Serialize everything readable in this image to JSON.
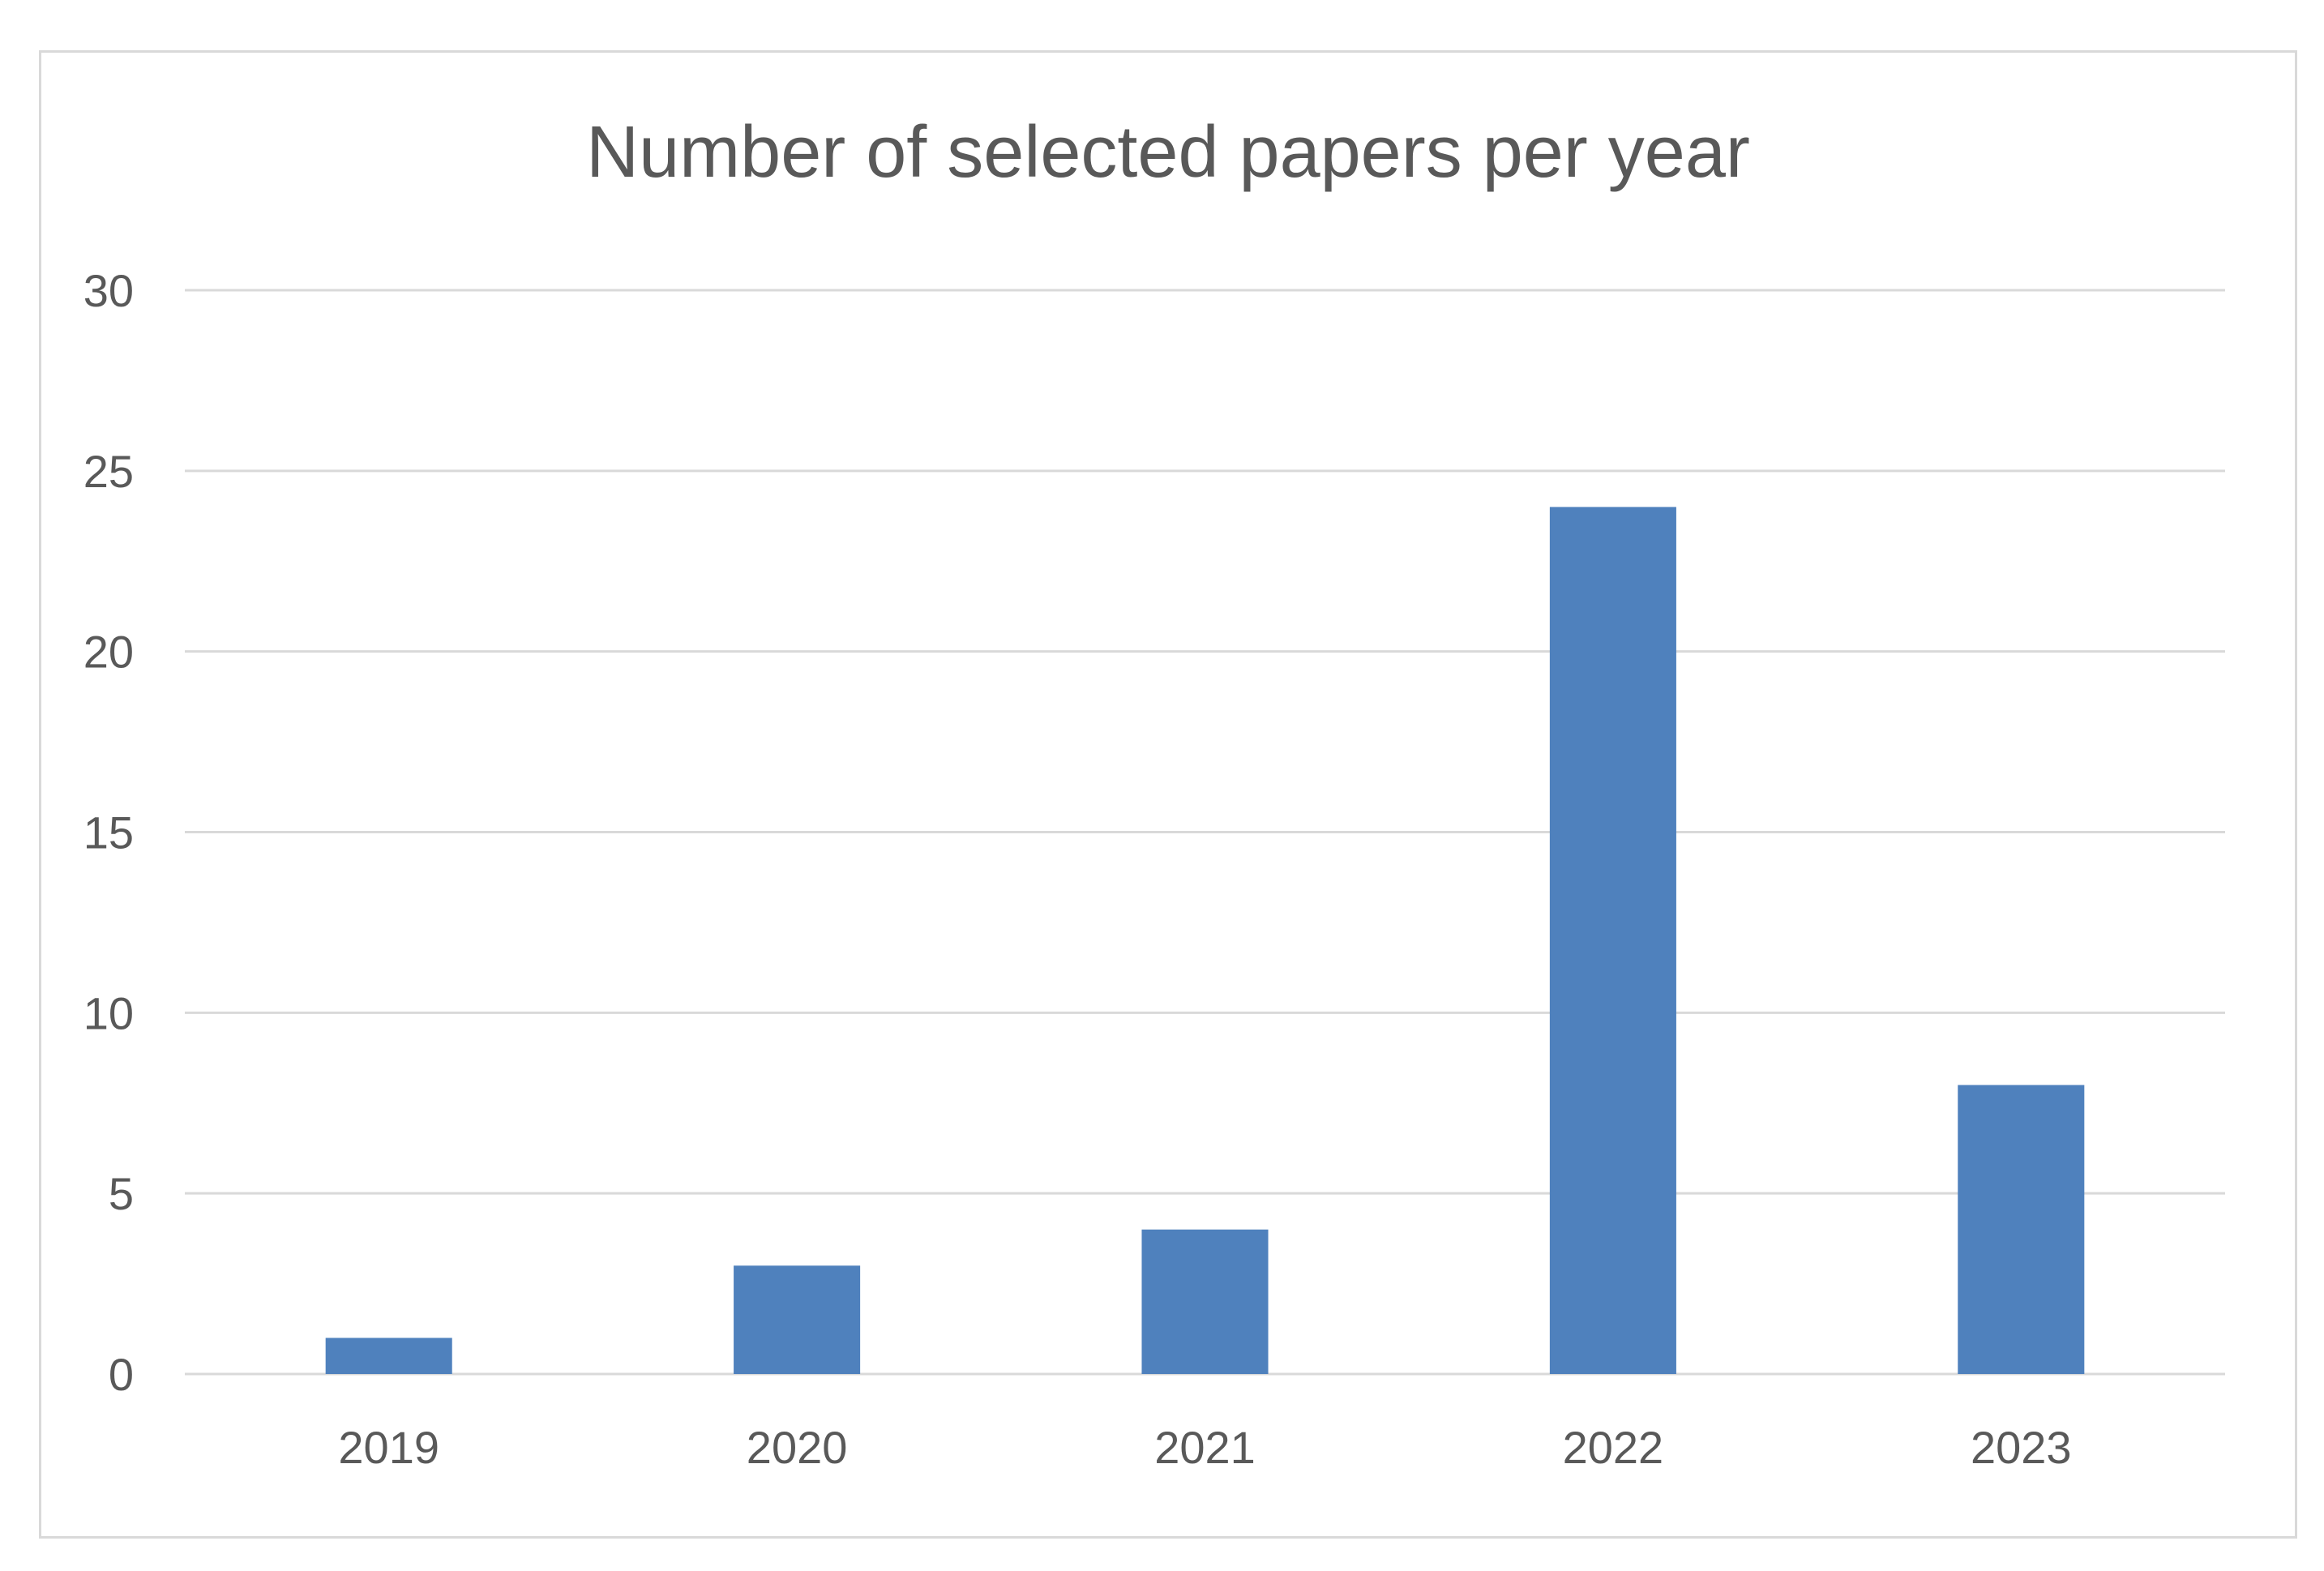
{
  "chart_data": {
    "type": "bar",
    "title": "Number of selected papers per year",
    "xlabel": "",
    "ylabel": "",
    "categories": [
      "2019",
      "2020",
      "2021",
      "2022",
      "2023"
    ],
    "values": [
      1,
      3,
      4,
      24,
      8
    ],
    "ylim": [
      0,
      30
    ],
    "yticks": [
      0,
      5,
      10,
      15,
      20,
      25,
      30
    ],
    "grid": true,
    "legend": "none",
    "bar_color": "#4f81bd"
  }
}
